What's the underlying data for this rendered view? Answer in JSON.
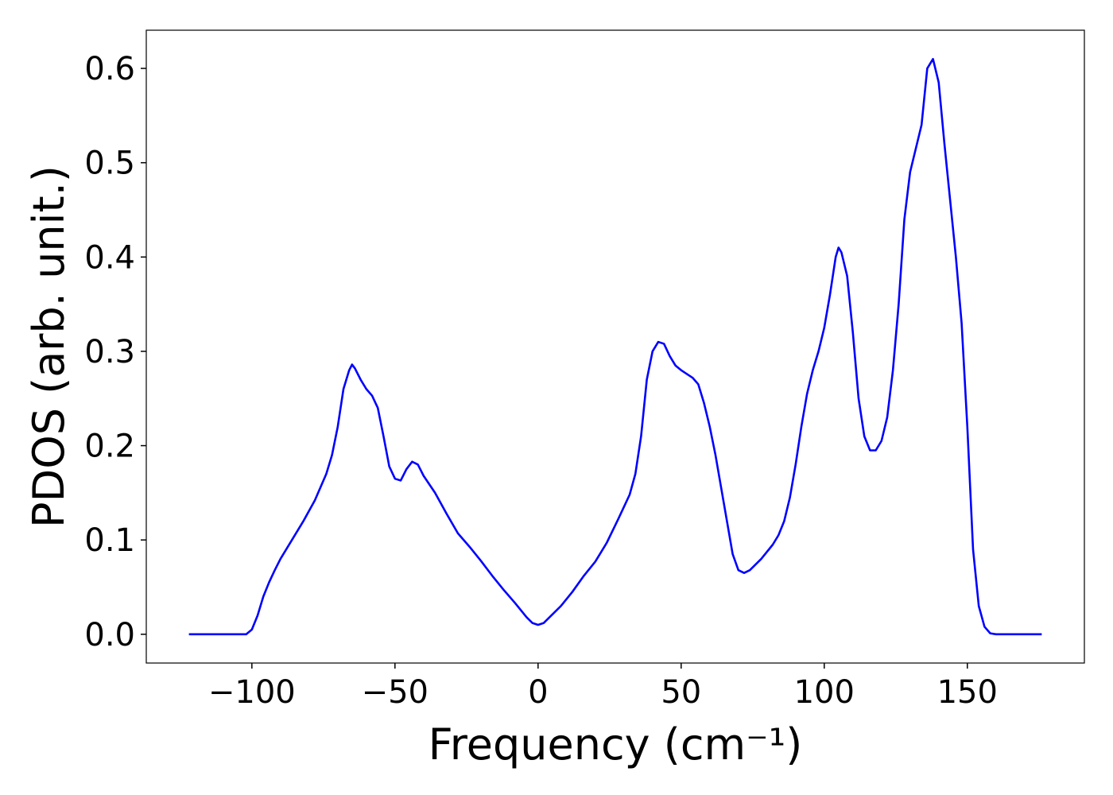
{
  "chart_data": {
    "type": "line",
    "xlabel": "Frequency (cm⁻¹)",
    "ylabel": "PDOS (arb. unit.)",
    "xlim": [
      -136.9,
      190.9
    ],
    "ylim": [
      -0.0305,
      0.6405
    ],
    "xticks": [
      {
        "value": -100,
        "label": "−100"
      },
      {
        "value": -50,
        "label": "−50"
      },
      0,
      50,
      100,
      150
    ],
    "yticks": [
      {
        "value": 0,
        "label": "0.0"
      },
      0.1,
      0.2,
      0.3,
      0.4,
      0.5,
      0.6
    ],
    "grid": false,
    "series": [
      {
        "color": "#0000ff",
        "x": [
          -122,
          -118,
          -114,
          -110,
          -106,
          -102,
          -100,
          -98,
          -96,
          -94,
          -92,
          -90,
          -86,
          -82,
          -78,
          -74,
          -72,
          -70,
          -68,
          -66,
          -65,
          -64,
          -62,
          -60,
          -58,
          -56,
          -54,
          -52,
          -50,
          -48,
          -46,
          -44,
          -42,
          -40,
          -36,
          -32,
          -28,
          -24,
          -20,
          -16,
          -12,
          -8,
          -4,
          -2,
          0,
          2,
          4,
          8,
          12,
          16,
          20,
          24,
          28,
          32,
          34,
          36,
          38,
          40,
          42,
          44,
          46,
          48,
          50,
          54,
          56,
          58,
          60,
          62,
          64,
          66,
          68,
          70,
          72,
          74,
          78,
          82,
          84,
          86,
          88,
          90,
          92,
          94,
          96,
          98,
          100,
          102,
          104,
          105,
          106,
          108,
          110,
          112,
          114,
          116,
          118,
          120,
          122,
          124,
          126,
          128,
          130,
          132,
          134,
          136,
          138,
          140,
          142,
          144,
          146,
          148,
          150,
          152,
          154,
          156,
          158,
          160,
          166,
          176
        ],
        "values": [
          0,
          0,
          0,
          0,
          0,
          0,
          0.005,
          0.02,
          0.04,
          0.055,
          0.068,
          0.08,
          0.1,
          0.12,
          0.142,
          0.17,
          0.19,
          0.22,
          0.26,
          0.28,
          0.286,
          0.282,
          0.27,
          0.26,
          0.253,
          0.24,
          0.21,
          0.178,
          0.165,
          0.163,
          0.175,
          0.183,
          0.18,
          0.168,
          0.15,
          0.128,
          0.107,
          0.093,
          0.078,
          0.062,
          0.047,
          0.033,
          0.018,
          0.012,
          0.01,
          0.012,
          0.018,
          0.03,
          0.045,
          0.062,
          0.077,
          0.097,
          0.122,
          0.148,
          0.17,
          0.21,
          0.27,
          0.3,
          0.31,
          0.308,
          0.295,
          0.285,
          0.28,
          0.272,
          0.265,
          0.245,
          0.22,
          0.19,
          0.155,
          0.12,
          0.085,
          0.068,
          0.065,
          0.068,
          0.08,
          0.095,
          0.105,
          0.12,
          0.145,
          0.18,
          0.22,
          0.255,
          0.28,
          0.3,
          0.325,
          0.36,
          0.4,
          0.41,
          0.405,
          0.38,
          0.32,
          0.25,
          0.21,
          0.195,
          0.195,
          0.205,
          0.23,
          0.28,
          0.35,
          0.44,
          0.49,
          0.515,
          0.54,
          0.6,
          0.61,
          0.585,
          0.52,
          0.46,
          0.4,
          0.33,
          0.22,
          0.09,
          0.03,
          0.008,
          0.001,
          0,
          0,
          0
        ]
      }
    ]
  }
}
